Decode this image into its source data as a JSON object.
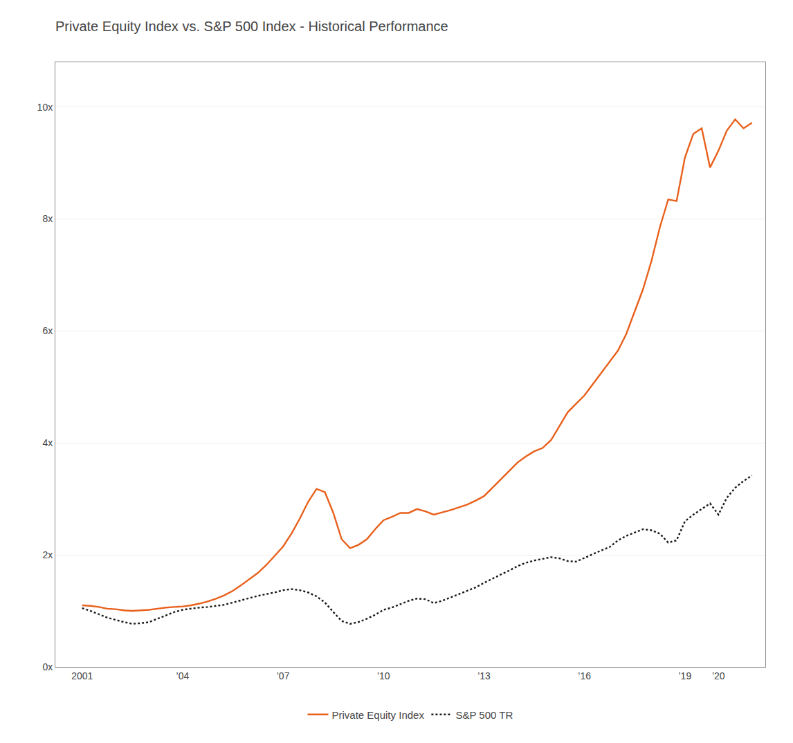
{
  "chart_data": {
    "type": "line",
    "title": "Private Equity Index vs. S&P 500 Index - Historical Performance",
    "x": [
      2001.0,
      2001.25,
      2001.5,
      2001.75,
      2002.0,
      2002.25,
      2002.5,
      2002.75,
      2003.0,
      2003.25,
      2003.5,
      2003.75,
      2004.0,
      2004.25,
      2004.5,
      2004.75,
      2005.0,
      2005.25,
      2005.5,
      2005.75,
      2006.0,
      2006.25,
      2006.5,
      2006.75,
      2007.0,
      2007.25,
      2007.5,
      2007.75,
      2008.0,
      2008.25,
      2008.5,
      2008.75,
      2009.0,
      2009.25,
      2009.5,
      2009.75,
      2010.0,
      2010.25,
      2010.5,
      2010.75,
      2011.0,
      2011.25,
      2011.5,
      2011.75,
      2012.0,
      2012.25,
      2012.5,
      2012.75,
      2013.0,
      2013.25,
      2013.5,
      2013.75,
      2014.0,
      2014.25,
      2014.5,
      2014.75,
      2015.0,
      2015.25,
      2015.5,
      2015.75,
      2016.0,
      2016.25,
      2016.5,
      2016.75,
      2017.0,
      2017.25,
      2017.5,
      2017.75,
      2018.0,
      2018.25,
      2018.5,
      2018.75,
      2019.0,
      2019.25,
      2019.5,
      2019.75,
      2020.0,
      2020.25,
      2020.5,
      2020.75,
      2021.0
    ],
    "series": [
      {
        "name": "Private Equity Index",
        "color": "#E8601C",
        "line_style": "solid",
        "values": [
          1.1,
          1.09,
          1.07,
          1.04,
          1.03,
          1.01,
          1.0,
          1.01,
          1.02,
          1.04,
          1.06,
          1.07,
          1.08,
          1.1,
          1.13,
          1.17,
          1.22,
          1.28,
          1.36,
          1.46,
          1.57,
          1.68,
          1.82,
          1.98,
          2.15,
          2.38,
          2.65,
          2.95,
          3.18,
          3.12,
          2.75,
          2.28,
          2.12,
          2.18,
          2.28,
          2.46,
          2.62,
          2.68,
          2.75,
          2.75,
          2.82,
          2.78,
          2.72,
          2.76,
          2.8,
          2.85,
          2.9,
          2.97,
          3.05,
          3.2,
          3.35,
          3.5,
          3.65,
          3.76,
          3.85,
          3.91,
          4.05,
          4.3,
          4.55,
          4.7,
          4.85,
          5.05,
          5.25,
          5.45,
          5.65,
          5.95,
          6.35,
          6.75,
          7.25,
          7.85,
          8.35,
          8.32,
          9.1,
          9.52,
          9.62,
          8.92,
          9.22,
          9.58,
          9.78,
          9.62,
          9.72
        ]
      },
      {
        "name": "S&P 500 TR",
        "color": "#1a1a1a",
        "line_style": "dotted",
        "values": [
          1.05,
          1.0,
          0.94,
          0.88,
          0.84,
          0.8,
          0.77,
          0.78,
          0.8,
          0.86,
          0.92,
          0.98,
          1.02,
          1.04,
          1.06,
          1.07,
          1.09,
          1.11,
          1.15,
          1.19,
          1.23,
          1.27,
          1.3,
          1.33,
          1.37,
          1.39,
          1.37,
          1.33,
          1.26,
          1.15,
          0.98,
          0.82,
          0.77,
          0.8,
          0.86,
          0.93,
          1.02,
          1.06,
          1.12,
          1.18,
          1.22,
          1.21,
          1.14,
          1.18,
          1.24,
          1.3,
          1.36,
          1.42,
          1.5,
          1.58,
          1.65,
          1.72,
          1.8,
          1.86,
          1.9,
          1.93,
          1.96,
          1.94,
          1.89,
          1.88,
          1.95,
          2.02,
          2.08,
          2.14,
          2.26,
          2.34,
          2.4,
          2.46,
          2.44,
          2.38,
          2.22,
          2.26,
          2.6,
          2.72,
          2.82,
          2.92,
          2.72,
          3.02,
          3.2,
          3.32,
          3.42
        ]
      }
    ],
    "xlim": [
      2000.2,
      2021.4
    ],
    "xticks": [
      2001,
      {
        "value": 2004,
        "label": "’04"
      },
      {
        "value": 2007,
        "label": "’07"
      },
      {
        "value": 2010,
        "label": "’10"
      },
      {
        "value": 2013,
        "label": "’13"
      },
      {
        "value": 2016,
        "label": "’16"
      },
      {
        "value": 2019,
        "label": "’19"
      },
      {
        "value": 2020,
        "label": "’20"
      }
    ],
    "ylim": [
      0,
      10.8
    ],
    "yticks": [
      {
        "value": 0,
        "label": "0x"
      },
      {
        "value": 2,
        "label": "2x"
      },
      {
        "value": 4,
        "label": "4x"
      },
      {
        "value": 6,
        "label": "6x"
      },
      {
        "value": 8,
        "label": "8x"
      },
      {
        "value": 10,
        "label": "10x"
      }
    ],
    "grid": true,
    "legend": "bottom"
  }
}
